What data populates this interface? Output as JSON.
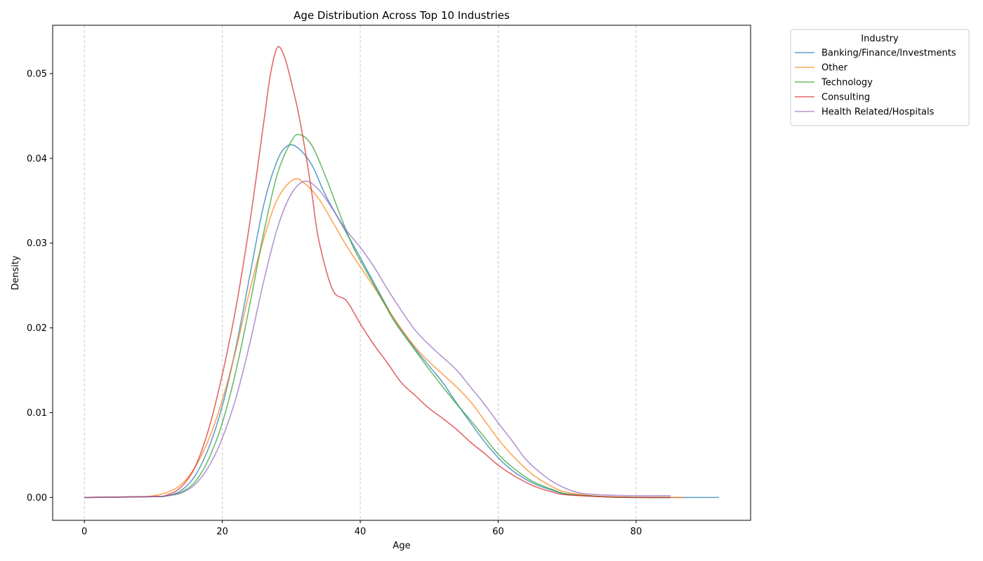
{
  "chart_data": {
    "type": "line",
    "title": "Age Distribution Across Top 10 Industries",
    "xlabel": "Age",
    "ylabel": "Density",
    "xlim": [
      -4.6,
      96.6
    ],
    "ylim": [
      -0.0027,
      0.0557
    ],
    "xticks": [
      0,
      20,
      40,
      60,
      80
    ],
    "yticks": [
      0.0,
      0.01,
      0.02,
      0.03,
      0.04,
      0.05
    ],
    "ytick_labels": [
      "0.00",
      "0.01",
      "0.02",
      "0.03",
      "0.04",
      "0.05"
    ],
    "grid": "x-dashed",
    "legend": {
      "title": "Industry",
      "placement": "outside-top-right"
    },
    "series": [
      {
        "name": "Banking/Finance/Investments",
        "color": "#1f77b4",
        "points": [
          [
            0,
            0
          ],
          [
            10,
            0.0001
          ],
          [
            12,
            0.0002
          ],
          [
            14,
            0.0008
          ],
          [
            16,
            0.0025
          ],
          [
            18,
            0.0058
          ],
          [
            20,
            0.0108
          ],
          [
            22,
            0.0178
          ],
          [
            24,
            0.0262
          ],
          [
            26,
            0.0345
          ],
          [
            28,
            0.0398
          ],
          [
            29.5,
            0.0415
          ],
          [
            31,
            0.0412
          ],
          [
            33,
            0.0392
          ],
          [
            35,
            0.0356
          ],
          [
            38,
            0.0312
          ],
          [
            40,
            0.0283
          ],
          [
            42,
            0.0253
          ],
          [
            45,
            0.0209
          ],
          [
            48,
            0.0175
          ],
          [
            50,
            0.0155
          ],
          [
            52,
            0.0135
          ],
          [
            54,
            0.0111
          ],
          [
            56,
            0.0088
          ],
          [
            58,
            0.0066
          ],
          [
            60,
            0.0047
          ],
          [
            62,
            0.0032
          ],
          [
            65,
            0.0017
          ],
          [
            68,
            0.0008
          ],
          [
            70,
            0.0004
          ],
          [
            75,
            0.0001
          ],
          [
            80,
            0
          ],
          [
            92,
            0
          ]
        ]
      },
      {
        "name": "Other",
        "color": "#ff7f0e",
        "points": [
          [
            0,
            0
          ],
          [
            8,
            0.0001
          ],
          [
            10,
            0.0002
          ],
          [
            12,
            0.0006
          ],
          [
            14,
            0.0015
          ],
          [
            16,
            0.0035
          ],
          [
            18,
            0.0068
          ],
          [
            20,
            0.0115
          ],
          [
            22,
            0.0175
          ],
          [
            24,
            0.0245
          ],
          [
            26,
            0.0305
          ],
          [
            28,
            0.0352
          ],
          [
            30.3,
            0.0375
          ],
          [
            32,
            0.037
          ],
          [
            34,
            0.0352
          ],
          [
            36,
            0.0325
          ],
          [
            38,
            0.0297
          ],
          [
            40,
            0.0272
          ],
          [
            42,
            0.0248
          ],
          [
            45,
            0.021
          ],
          [
            48,
            0.0177
          ],
          [
            50,
            0.016
          ],
          [
            52,
            0.0145
          ],
          [
            54,
            0.013
          ],
          [
            56,
            0.0113
          ],
          [
            58,
            0.0091
          ],
          [
            60,
            0.0069
          ],
          [
            62,
            0.005
          ],
          [
            65,
            0.0027
          ],
          [
            68,
            0.0012
          ],
          [
            70,
            0.0006
          ],
          [
            75,
            0.0001
          ],
          [
            80,
            0
          ],
          [
            87,
            0
          ]
        ]
      },
      {
        "name": "Technology",
        "color": "#2ca02c",
        "points": [
          [
            0,
            0
          ],
          [
            10,
            0.0001
          ],
          [
            12,
            0.0002
          ],
          [
            14,
            0.0006
          ],
          [
            16,
            0.0018
          ],
          [
            18,
            0.0045
          ],
          [
            20,
            0.0088
          ],
          [
            22,
            0.015
          ],
          [
            24,
            0.0228
          ],
          [
            26,
            0.0312
          ],
          [
            28,
            0.0382
          ],
          [
            30,
            0.042
          ],
          [
            31.2,
            0.0428
          ],
          [
            33,
            0.0415
          ],
          [
            35,
            0.0378
          ],
          [
            37,
            0.0335
          ],
          [
            39,
            0.0295
          ],
          [
            41,
            0.0265
          ],
          [
            43,
            0.0236
          ],
          [
            45,
            0.0207
          ],
          [
            48,
            0.0173
          ],
          [
            50,
            0.0151
          ],
          [
            52,
            0.013
          ],
          [
            54,
            0.011
          ],
          [
            56,
            0.0091
          ],
          [
            58,
            0.0071
          ],
          [
            60,
            0.0051
          ],
          [
            62,
            0.0036
          ],
          [
            65,
            0.0019
          ],
          [
            68,
            0.0009
          ],
          [
            70,
            0.0004
          ],
          [
            75,
            0.0001
          ],
          [
            80,
            0
          ],
          [
            85,
            0
          ]
        ]
      },
      {
        "name": "Consulting",
        "color": "#d62728",
        "points": [
          [
            0,
            0
          ],
          [
            10,
            0.0001
          ],
          [
            12,
            0.0003
          ],
          [
            14,
            0.0012
          ],
          [
            16,
            0.0035
          ],
          [
            18,
            0.008
          ],
          [
            20,
            0.0145
          ],
          [
            22,
            0.0225
          ],
          [
            24,
            0.0325
          ],
          [
            26,
            0.0442
          ],
          [
            27,
            0.05
          ],
          [
            28,
            0.0531
          ],
          [
            29,
            0.052
          ],
          [
            30,
            0.049
          ],
          [
            31,
            0.0455
          ],
          [
            32,
            0.041
          ],
          [
            33,
            0.0358
          ],
          [
            34,
            0.0303
          ],
          [
            36,
            0.0245
          ],
          [
            38,
            0.0232
          ],
          [
            40,
            0.0205
          ],
          [
            42,
            0.018
          ],
          [
            44,
            0.0158
          ],
          [
            46,
            0.0135
          ],
          [
            48,
            0.012
          ],
          [
            50,
            0.0105
          ],
          [
            52,
            0.0093
          ],
          [
            54,
            0.008
          ],
          [
            56,
            0.0065
          ],
          [
            58,
            0.0052
          ],
          [
            60,
            0.0038
          ],
          [
            62,
            0.0027
          ],
          [
            65,
            0.0014
          ],
          [
            68,
            0.0006
          ],
          [
            70,
            0.0003
          ],
          [
            75,
            0.0001
          ],
          [
            80,
            0
          ],
          [
            85,
            0
          ]
        ]
      },
      {
        "name": "Health Related/Hospitals",
        "color": "#9467bd",
        "points": [
          [
            0,
            0
          ],
          [
            10,
            0.0001
          ],
          [
            12,
            0.0002
          ],
          [
            14,
            0.0005
          ],
          [
            16,
            0.0015
          ],
          [
            18,
            0.0036
          ],
          [
            20,
            0.007
          ],
          [
            22,
            0.0118
          ],
          [
            24,
            0.0182
          ],
          [
            26,
            0.0255
          ],
          [
            28,
            0.0318
          ],
          [
            30,
            0.0358
          ],
          [
            32,
            0.0373
          ],
          [
            34,
            0.0363
          ],
          [
            36,
            0.034
          ],
          [
            38,
            0.0315
          ],
          [
            40,
            0.0295
          ],
          [
            42,
            0.0272
          ],
          [
            44,
            0.0245
          ],
          [
            46,
            0.022
          ],
          [
            48,
            0.0197
          ],
          [
            50,
            0.018
          ],
          [
            52,
            0.0165
          ],
          [
            54,
            0.015
          ],
          [
            56,
            0.013
          ],
          [
            58,
            0.011
          ],
          [
            60,
            0.0088
          ],
          [
            62,
            0.0067
          ],
          [
            64,
            0.0045
          ],
          [
            66,
            0.003
          ],
          [
            68,
            0.0018
          ],
          [
            70,
            0.001
          ],
          [
            72,
            0.0005
          ],
          [
            75,
            0.0003
          ],
          [
            80,
            0.0002
          ],
          [
            85,
            0.0002
          ]
        ]
      }
    ]
  }
}
